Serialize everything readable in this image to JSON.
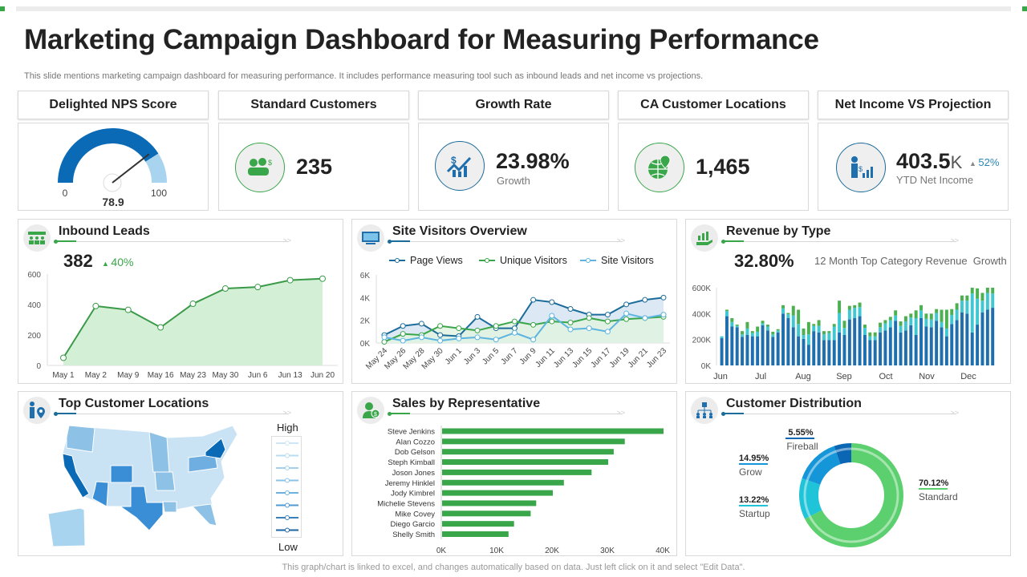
{
  "title": "Marketing Campaign Dashboard for Measuring Performance",
  "subtitle": "This slide mentions marketing campaign dashboard for measuring performance. It includes performance measuring tool such as inbound leads and net income vs projections.",
  "colors": {
    "green": "#3aa64a",
    "dark_blue": "#0b6aa8",
    "light_blue": "#a9d4ef",
    "teal": "#39c6d0"
  },
  "kpis": {
    "nps": {
      "label": "Delighted NPS Score",
      "value": "78.9",
      "min": "0",
      "max": "100",
      "score": 78.9
    },
    "standard": {
      "label": "Standard Customers",
      "value": "235",
      "icon": "customers-dollar-icon"
    },
    "growth": {
      "label": "Growth Rate",
      "value": "23.98%",
      "caption": "Growth",
      "icon": "growth-chart-icon"
    },
    "ca": {
      "label": "CA Customer Locations",
      "value": "1,465",
      "icon": "globe-pin-icon"
    },
    "income": {
      "label": "Net Income VS Projection",
      "value": "403.5",
      "unit": "K",
      "change": "52%",
      "caption": "YTD Net Income",
      "icon": "presenter-chart-icon"
    }
  },
  "inbound": {
    "title": "Inbound Leads",
    "value": "382",
    "change": "40%"
  },
  "visitors": {
    "title": "Site Visitors Overview"
  },
  "revenue": {
    "title": "Revenue by Type",
    "value": "32.80%",
    "caption": "12 Month Top Category Revenue  Growth"
  },
  "locations": {
    "title": "Top Customer Locations",
    "legend_high": "High",
    "legend_low": "Low"
  },
  "sales": {
    "title": "Sales by Representative"
  },
  "distribution": {
    "title": "Customer Distribution"
  },
  "footer": "This graph/chart is linked to excel, and changes automatically based on data. Just left click on it and select \"Edit Data\".",
  "chart_data": [
    {
      "id": "inbound",
      "type": "area",
      "categories": [
        "May 1",
        "May 2",
        "May 9",
        "May 16",
        "May 23",
        "May 30",
        "Jun 6",
        "Jun 13",
        "Jun 20"
      ],
      "values": [
        50,
        390,
        365,
        250,
        405,
        505,
        515,
        560,
        570
      ],
      "ylim": [
        0,
        600
      ],
      "yticks": [
        "0",
        "200",
        "400",
        "600"
      ]
    },
    {
      "id": "visitors",
      "type": "line",
      "categories": [
        "May 24",
        "May 26",
        "May 28",
        "May 30",
        "Jun 1",
        "Jun 3",
        "Jun 5",
        "Jun 7",
        "Jun 9",
        "Jun 11",
        "Jun 13",
        "Jun 15",
        "Jun 17",
        "Jun 19",
        "Jun 21",
        "Jun 23"
      ],
      "ylim": [
        0,
        6000
      ],
      "yticks": [
        "0K",
        "2K",
        "4K",
        "6K"
      ],
      "legend": "top",
      "series": [
        {
          "name": "Page Views",
          "color": "#1b6c9a",
          "values": [
            700,
            1500,
            1700,
            700,
            600,
            2300,
            1300,
            1300,
            3800,
            3600,
            3000,
            2500,
            2500,
            3400,
            3800,
            4000
          ]
        },
        {
          "name": "Unique  Visitors",
          "color": "#3aa64a",
          "values": [
            100,
            800,
            700,
            1500,
            1300,
            1100,
            1500,
            1900,
            1600,
            1900,
            1800,
            2200,
            1900,
            2100,
            2200,
            2300
          ]
        },
        {
          "name": "Site Visitors",
          "color": "#5db4e0",
          "values": [
            500,
            200,
            500,
            200,
            400,
            500,
            300,
            900,
            300,
            2400,
            1200,
            1300,
            1000,
            2600,
            2200,
            2500
          ]
        }
      ]
    },
    {
      "id": "revenue",
      "type": "bar",
      "stacked": true,
      "ylim": [
        0,
        600
      ],
      "yticks": [
        "0K",
        "200K",
        "400K",
        "600K"
      ],
      "months": [
        "Jun",
        "Jul",
        "Aug",
        "Sep",
        "Oct",
        "Nov",
        "Dec"
      ],
      "series_colors": [
        "#1f6fae",
        "#3fc7d2",
        "#4caf50"
      ],
      "values": [
        [
          210,
          15,
          0
        ],
        [
          380,
          40,
          10
        ],
        [
          300,
          35,
          30
        ],
        [
          295,
          10,
          10
        ],
        [
          220,
          20,
          25
        ],
        [
          235,
          50,
          50
        ],
        [
          225,
          25,
          15
        ],
        [
          225,
          35,
          40
        ],
        [
          310,
          15,
          20
        ],
        [
          270,
          30,
          15
        ],
        [
          220,
          20,
          20
        ],
        [
          255,
          15,
          10
        ],
        [
          400,
          40,
          25
        ],
        [
          365,
          30,
          10
        ],
        [
          295,
          90,
          75
        ],
        [
          225,
          95,
          110
        ],
        [
          205,
          30,
          50
        ],
        [
          160,
          80,
          95
        ],
        [
          265,
          40,
          15
        ],
        [
          255,
          50,
          45
        ],
        [
          195,
          45,
          25
        ],
        [
          195,
          55,
          15
        ],
        [
          195,
          105,
          20
        ],
        [
          255,
          150,
          95
        ],
        [
          235,
          55,
          55
        ],
        [
          355,
          75,
          30
        ],
        [
          365,
          80,
          20
        ],
        [
          380,
          70,
          35
        ],
        [
          235,
          55,
          25
        ],
        [
          195,
          30,
          30
        ],
        [
          195,
          30,
          30
        ],
        [
          255,
          40,
          35
        ],
        [
          270,
          55,
          25
        ],
        [
          295,
          55,
          25
        ],
        [
          345,
          40,
          40
        ],
        [
          255,
          50,
          35
        ],
        [
          270,
          70,
          40
        ],
        [
          310,
          60,
          30
        ],
        [
          235,
          130,
          60
        ],
        [
          365,
          60,
          40
        ],
        [
          300,
          60,
          40
        ],
        [
          295,
          60,
          45
        ],
        [
          345,
          60,
          30
        ],
        [
          295,
          40,
          95
        ],
        [
          225,
          60,
          145
        ],
        [
          320,
          70,
          45
        ],
        [
          350,
          80,
          50
        ],
        [
          410,
          90,
          40
        ],
        [
          400,
          100,
          40
        ],
        [
          255,
          300,
          45
        ],
        [
          315,
          200,
          80
        ],
        [
          410,
          90,
          60
        ],
        [
          430,
          130,
          40
        ],
        [
          445,
          110,
          45
        ]
      ]
    },
    {
      "id": "sales",
      "type": "bar",
      "orientation": "horizontal",
      "xlim": [
        0,
        40000
      ],
      "xticks": [
        "0K",
        "10K",
        "20K",
        "30K",
        "40K"
      ],
      "categories": [
        "Steve Jenkins",
        "Alan Cozzo",
        "Dob Gelson",
        "Steph Kimball",
        "Joson Jones",
        "Jeremy Hinklel",
        "Jody Kimbrel",
        "Michelie Stevens",
        "Mike Covey",
        "Diego Garcio",
        "Shelly Smith"
      ],
      "values": [
        40000,
        33000,
        31000,
        30000,
        27000,
        22000,
        20000,
        17000,
        16000,
        13000,
        12000
      ]
    },
    {
      "id": "distribution",
      "type": "pie",
      "donut": true,
      "slices": [
        {
          "label": "Standard",
          "value": 70.12,
          "text": "70.12%",
          "color": "#5ccf6e"
        },
        {
          "label": "Startup",
          "value": 13.22,
          "text": "13.22%",
          "color": "#1fc4d8"
        },
        {
          "label": "Grow",
          "value": 14.95,
          "text": "14.95%",
          "color": "#1496d8"
        },
        {
          "label": "Fireball",
          "value": 5.55,
          "text": "5.55%",
          "color": "#0b66b4"
        }
      ]
    }
  ]
}
